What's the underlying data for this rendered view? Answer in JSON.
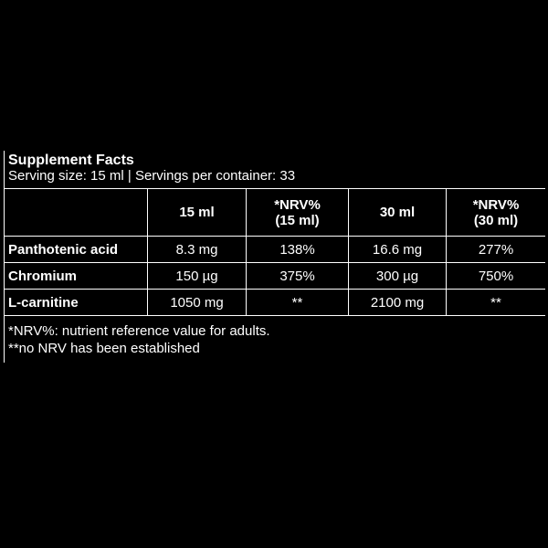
{
  "title": "Supplement Facts",
  "serving": "Serving size: 15 ml | Servings per container: 33",
  "table": {
    "header": [
      "15 ml",
      "*NRV%\n(15 ml)",
      "30 ml",
      "*NRV%\n(30 ml)"
    ],
    "rows": [
      [
        "Panthotenic acid",
        "8.3 mg",
        "138%",
        "16.6 mg",
        "277%"
      ],
      [
        "Chromium",
        "150 µg",
        "375%",
        "300 µg",
        "750%"
      ],
      [
        "L-carnitine",
        "1050 mg",
        "**",
        "2100 mg",
        "**"
      ]
    ]
  },
  "footnotes": [
    "*NRV%: nutrient reference value for adults.",
    "**no NRV has been established"
  ]
}
